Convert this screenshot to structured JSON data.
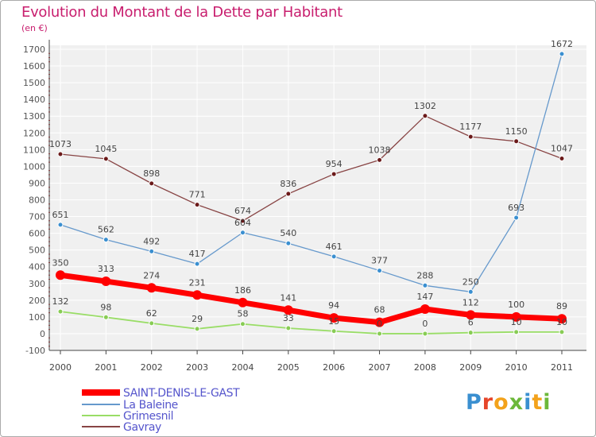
{
  "header": {
    "title": "Evolution du Montant de la Dette par Habitant",
    "unit": "(en €)"
  },
  "logo": {
    "text": "Proxiti",
    "colors": [
      "#3a8fd0",
      "#e6452a",
      "#f3a21b",
      "#6cb83a",
      "#3a8fd0",
      "#f3a21b",
      "#6cb83a"
    ]
  },
  "chart_data": {
    "type": "line",
    "x": [
      "2000",
      "2001",
      "2002",
      "2003",
      "2004",
      "2005",
      "2006",
      "2007",
      "2008",
      "2009",
      "2010",
      "2011"
    ],
    "ylim": [
      -100,
      1700
    ],
    "yticks": [
      "-100",
      "0",
      "100",
      "200",
      "300",
      "400",
      "500",
      "600",
      "700",
      "800",
      "900",
      "1000",
      "1100",
      "1200",
      "1300",
      "1400",
      "1500",
      "1600",
      "1700"
    ],
    "grid": true,
    "legend_position": "bottom-left",
    "series": [
      {
        "name": "SAINT-DENIS-LE-GAST",
        "color": "#ff0000",
        "values": [
          350,
          313,
          274,
          231,
          186,
          141,
          94,
          68,
          147,
          112,
          100,
          89
        ]
      },
      {
        "name": "La Baleine",
        "color": "#6699cc",
        "values": [
          651,
          562,
          492,
          417,
          604,
          540,
          461,
          377,
          288,
          250,
          693,
          1672
        ]
      },
      {
        "name": "Grimesnil",
        "color": "#99dd66",
        "values": [
          132,
          98,
          62,
          29,
          58,
          33,
          15,
          0,
          0,
          6,
          10,
          10
        ]
      },
      {
        "name": "Gavray",
        "color": "#884444",
        "values": [
          1073,
          1045,
          898,
          771,
          674,
          836,
          954,
          1038,
          1302,
          1177,
          1150,
          1047
        ]
      }
    ]
  }
}
